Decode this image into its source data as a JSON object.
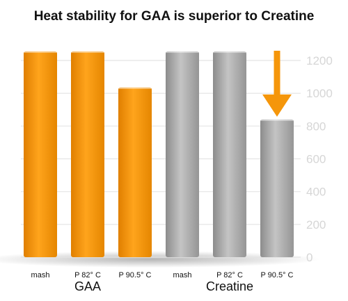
{
  "chart_data": {
    "type": "bar",
    "title": "Heat stability for GAA is superior to Creatine",
    "categories": [
      "mash",
      "P 82° C",
      "P 90.5° C",
      "mash",
      "P 82° C",
      "P 90.5° C"
    ],
    "groups": [
      {
        "label": "GAA",
        "color": "#f5960a",
        "categories": [
          "mash",
          "P 82° C",
          "P 90.5° C"
        ],
        "values": [
          1255,
          1255,
          1035
        ]
      },
      {
        "label": "Creatine",
        "color": "#a6a6a6",
        "categories": [
          "mash",
          "P 82° C",
          "P 90.5° C"
        ],
        "values": [
          1255,
          1255,
          840
        ]
      }
    ],
    "ylim": [
      0,
      1300
    ],
    "yticks": [
      0,
      200,
      400,
      600,
      800,
      1000,
      1200
    ],
    "ytick_position": "right",
    "grid": true,
    "xlabel": "",
    "ylabel": "",
    "annotation": {
      "type": "down-arrow",
      "target": "Creatine P 90.5° C",
      "color": "#f5960a"
    }
  }
}
